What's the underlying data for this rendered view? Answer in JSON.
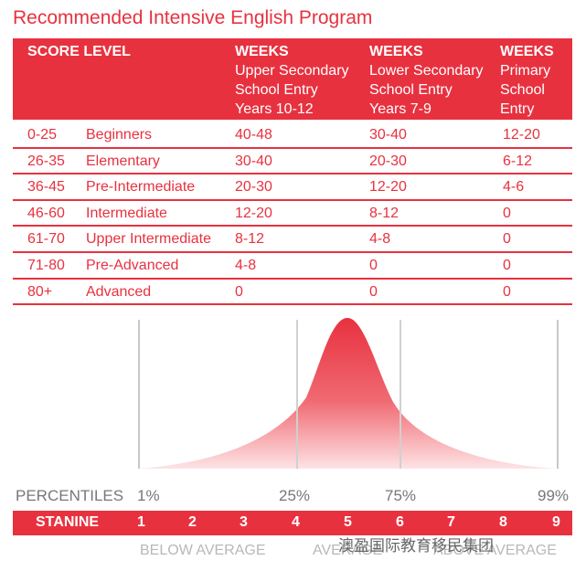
{
  "title": "Recommended Intensive English Program",
  "table": {
    "headers": {
      "score_level": "SCORE LEVEL",
      "col1": {
        "weeks": "WEEKS",
        "line1": "Upper Secondary",
        "line2": "School Entry",
        "line3": "Years 10-12"
      },
      "col2": {
        "weeks": "WEEKS",
        "line1": "Lower Secondary",
        "line2": "School Entry",
        "line3": "Years 7-9"
      },
      "col3": {
        "weeks": "WEEKS",
        "line1": "Primary",
        "line2": "School",
        "line3": "Entry"
      }
    },
    "rows": [
      {
        "score": "0-25",
        "level": "Beginners",
        "upper": "40-48",
        "lower": "30-40",
        "primary": "12-20"
      },
      {
        "score": "26-35",
        "level": "Elementary",
        "upper": "30-40",
        "lower": "20-30",
        "primary": "6-12"
      },
      {
        "score": "36-45",
        "level": "Pre-Intermediate",
        "upper": "20-30",
        "lower": "12-20",
        "primary": "4-6"
      },
      {
        "score": "46-60",
        "level": "Intermediate",
        "upper": "12-20",
        "lower": "8-12",
        "primary": "0"
      },
      {
        "score": "61-70",
        "level": "Upper Intermediate",
        "upper": "8-12",
        "lower": "4-8",
        "primary": "0"
      },
      {
        "score": "71-80",
        "level": "Pre-Advanced",
        "upper": "4-8",
        "lower": "0",
        "primary": "0"
      },
      {
        "score": "80+",
        "level": "Advanced",
        "upper": "0",
        "lower": "0",
        "primary": "0"
      }
    ]
  },
  "distribution": {
    "percentiles_label": "PERCENTILES",
    "percentiles": [
      "1%",
      "25%",
      "75%",
      "99%"
    ],
    "stanine_label": "STANINE",
    "stanines": [
      "1",
      "2",
      "3",
      "4",
      "5",
      "6",
      "7",
      "8",
      "9"
    ],
    "bands": [
      "BELOW AVERAGE",
      "AVERAGE",
      "ABOVE AVERAGE"
    ]
  },
  "watermark": "澳盈国际教育移民集团",
  "colors": {
    "accent": "#e8313f",
    "muted": "#b8b8b8"
  }
}
